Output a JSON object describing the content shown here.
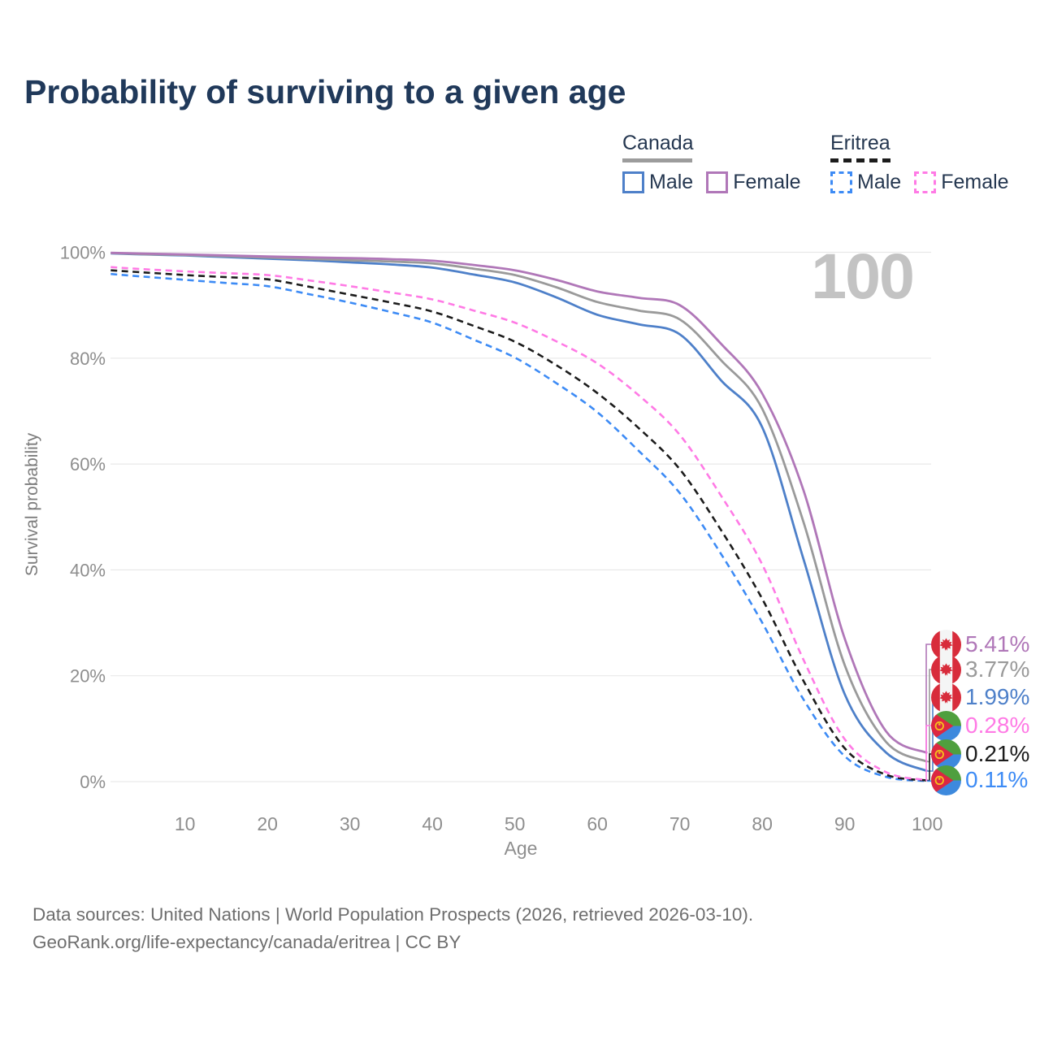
{
  "title": "Probability of surviving to a given age",
  "watermark": "100",
  "legend": {
    "groups": [
      {
        "name": "Canada",
        "line_style": "solid",
        "underline_color": "#9c9c9c",
        "items": [
          {
            "label": "Male",
            "color": "#4e80c9"
          },
          {
            "label": "Female",
            "color": "#b077b8"
          }
        ]
      },
      {
        "name": "Eritrea",
        "line_style": "dashed",
        "underline_color": "#1c1c1c",
        "items": [
          {
            "label": "Male",
            "color": "#3d8bf5"
          },
          {
            "label": "Female",
            "color": "#ff7ae5"
          }
        ]
      }
    ]
  },
  "axes": {
    "x_label": "Age",
    "y_label": "Survival probability",
    "x_ticks": [
      10,
      20,
      30,
      40,
      50,
      60,
      70,
      80,
      90,
      100
    ],
    "y_ticks": [
      {
        "label": "100%",
        "value": 100
      },
      {
        "label": "80%",
        "value": 80
      },
      {
        "label": "60%",
        "value": 60
      },
      {
        "label": "40%",
        "value": 40
      },
      {
        "label": "20%",
        "value": 20
      },
      {
        "label": "0%",
        "value": 0
      }
    ],
    "x_range": [
      1,
      100
    ],
    "y_range": [
      0,
      100
    ],
    "grid": "horizontal"
  },
  "chart_data": {
    "type": "line",
    "title": "Probability of surviving to a given age",
    "xlabel": "Age",
    "ylabel": "Survival probability",
    "x_ages": [
      1,
      5,
      10,
      15,
      20,
      25,
      30,
      35,
      40,
      45,
      50,
      55,
      60,
      65,
      70,
      75,
      80,
      85,
      90,
      95,
      100
    ],
    "series": [
      {
        "id": "canada-female",
        "name": "Canada Female",
        "country": "Canada",
        "sex": "Female",
        "color": "#b077b8",
        "dash": "solid",
        "flag": "canada",
        "end_label": "5.41%",
        "values": [
          99.9,
          99.75,
          99.6,
          99.4,
          99.2,
          99.05,
          98.9,
          98.7,
          98.4,
          97.6,
          96.6,
          94.8,
          92.6,
          91.4,
          90.0,
          82.7,
          73.3,
          55.0,
          27.0,
          9.5,
          5.41
        ]
      },
      {
        "id": "canada-both",
        "name": "Canada Both sexes",
        "country": "Canada",
        "sex": "Both",
        "color": "#9a9a9a",
        "dash": "solid",
        "flag": "canada",
        "end_label": "3.77%",
        "values": [
          99.85,
          99.65,
          99.5,
          99.25,
          99.0,
          98.75,
          98.5,
          98.25,
          97.9,
          96.9,
          95.7,
          93.4,
          90.6,
          89.0,
          87.3,
          79.6,
          70.4,
          49.0,
          22.0,
          7.5,
          3.77
        ]
      },
      {
        "id": "canada-male",
        "name": "Canada Male",
        "country": "Canada",
        "sex": "Male",
        "color": "#4e80c9",
        "dash": "solid",
        "flag": "canada",
        "end_label": "1.99%",
        "values": [
          99.8,
          99.6,
          99.4,
          99.1,
          98.8,
          98.5,
          98.1,
          97.7,
          97.1,
          95.8,
          94.3,
          91.5,
          88.2,
          86.4,
          84.5,
          75.8,
          66.9,
          42.0,
          16.5,
          5.5,
          1.99
        ]
      },
      {
        "id": "eritrea-female",
        "name": "Eritrea Female",
        "country": "Eritrea",
        "sex": "Female",
        "color": "#ff7ae5",
        "dash": "dashed",
        "flag": "eritrea",
        "end_label": "0.28%",
        "values": [
          97.2,
          96.8,
          96.4,
          96.05,
          95.7,
          94.7,
          93.6,
          92.4,
          91.1,
          89.0,
          86.7,
          83.2,
          79.0,
          73.0,
          65.5,
          54.0,
          41.0,
          23.0,
          8.0,
          1.8,
          0.28
        ]
      },
      {
        "id": "eritrea-both",
        "name": "Eritrea Both sexes",
        "country": "Eritrea",
        "sex": "Both",
        "color": "#1c1c1c",
        "dash": "dashed",
        "flag": "eritrea",
        "end_label": "0.21%",
        "values": [
          96.6,
          96.2,
          95.7,
          95.3,
          94.9,
          93.5,
          92.0,
          90.5,
          88.8,
          86.1,
          83.1,
          78.7,
          73.4,
          66.8,
          59.0,
          47.5,
          34.5,
          19.0,
          6.3,
          1.3,
          0.21
        ]
      },
      {
        "id": "eritrea-male",
        "name": "Eritrea Male",
        "country": "Eritrea",
        "sex": "Male",
        "color": "#3d8bf5",
        "dash": "dashed",
        "flag": "eritrea",
        "end_label": "0.11%",
        "values": [
          95.9,
          95.4,
          94.8,
          94.2,
          93.6,
          92.1,
          90.5,
          88.7,
          86.7,
          83.5,
          80.1,
          75.3,
          69.8,
          62.5,
          54.5,
          43.0,
          30.0,
          15.5,
          4.8,
          0.9,
          0.11
        ]
      }
    ],
    "legend_position": "top-right",
    "grid": "horizontal"
  },
  "footer": {
    "line1": "Data sources: United Nations | World Population Prospects (2026, retrieved 2026-03-10).",
    "line2": "GeoRank.org/life-expectancy/canada/eritrea | CC BY"
  }
}
